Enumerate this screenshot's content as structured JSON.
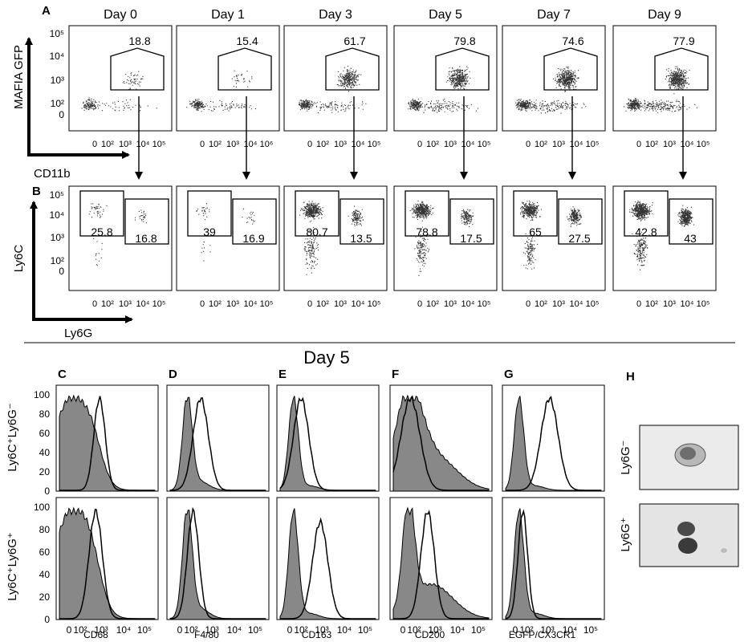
{
  "panel_a": {
    "letter": "A",
    "y_axis_label": "MAFIA GFP",
    "x_axis_label": "CD11b",
    "y_ticks": [
      "10⁵",
      "10⁴",
      "10³",
      "10²",
      "0"
    ],
    "x_ticks": [
      "0",
      "10²",
      "10³",
      "10⁴",
      "10⁵"
    ],
    "x_ticks_day1": [
      "0",
      "10²",
      "10³",
      "10⁴",
      "10⁶"
    ],
    "days": [
      {
        "label": "Day 0",
        "gate": "18.8"
      },
      {
        "label": "Day 1",
        "gate": "15.4"
      },
      {
        "label": "Day 3",
        "gate": "61.7"
      },
      {
        "label": "Day 5",
        "gate": "79.8"
      },
      {
        "label": "Day 7",
        "gate": "74.6"
      },
      {
        "label": "Day 9",
        "gate": "77.9"
      }
    ]
  },
  "panel_b": {
    "letter": "B",
    "y_axis_label": "Ly6C",
    "x_axis_label": "Ly6G",
    "y_ticks": [
      "10⁵",
      "10⁴",
      "10³",
      "10²",
      "0"
    ],
    "x_ticks": [
      "0",
      "10²",
      "10³",
      "10⁴",
      "10⁵"
    ],
    "days": [
      {
        "left_gate": "25.8",
        "right_gate": "16.8"
      },
      {
        "left_gate": "39",
        "right_gate": "16.9"
      },
      {
        "left_gate": "80.7",
        "right_gate": "13.5"
      },
      {
        "left_gate": "78.8",
        "right_gate": "17.5"
      },
      {
        "left_gate": "65",
        "right_gate": "27.5"
      },
      {
        "left_gate": "42.8",
        "right_gate": "43"
      }
    ]
  },
  "day5_section": {
    "title": "Day 5",
    "row_labels": [
      "Ly6C⁺Ly6G⁻",
      "Ly6C⁺Ly6G⁺"
    ],
    "y_ticks": [
      "100",
      "80",
      "60",
      "40",
      "20",
      "0"
    ],
    "x_ticks": [
      "0",
      "10²",
      "10³",
      "10⁴",
      "10⁵"
    ],
    "histograms": [
      {
        "letter": "C",
        "marker": "CD68"
      },
      {
        "letter": "D",
        "marker": "F4/80"
      },
      {
        "letter": "E",
        "marker": "CD163"
      },
      {
        "letter": "F",
        "marker": "CD200"
      },
      {
        "letter": "G",
        "marker": "EGFP/CX3CR1"
      }
    ],
    "panel_h": {
      "letter": "H",
      "image_labels": [
        "Ly6G⁻",
        "Ly6G⁺"
      ]
    }
  }
}
